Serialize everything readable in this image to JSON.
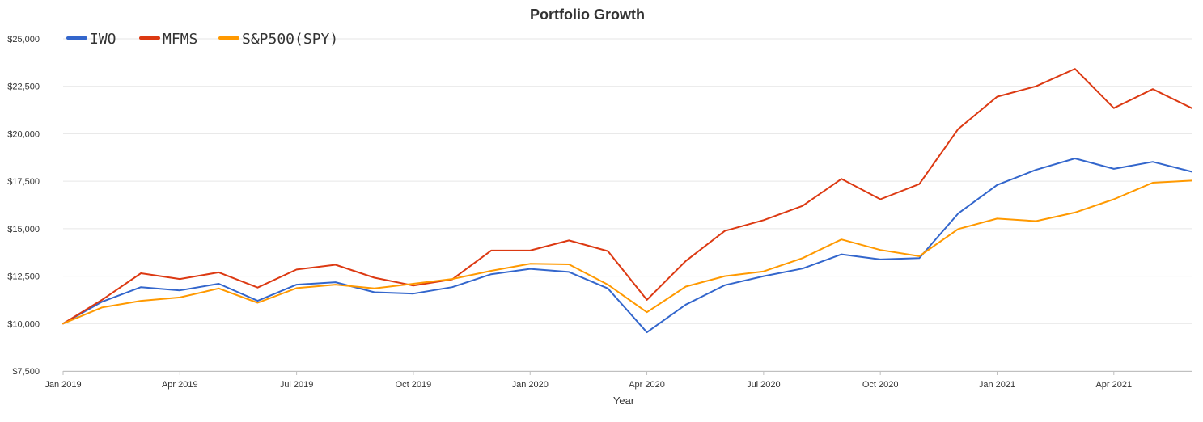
{
  "chart_data": {
    "type": "line",
    "title": "Portfolio Growth",
    "xlabel": "Year",
    "ylabel": "",
    "ylim": [
      7500,
      25000
    ],
    "y_ticks": [
      "$7,500",
      "$10,000",
      "$12,500",
      "$15,000",
      "$17,500",
      "$20,000",
      "$22,500",
      "$25,000"
    ],
    "y_tick_values": [
      7500,
      10000,
      12500,
      15000,
      17500,
      20000,
      22500,
      25000
    ],
    "x_ticks": [
      "Jan 2019",
      "Apr 2019",
      "Jul 2019",
      "Oct 2019",
      "Jan 2020",
      "Apr 2020",
      "Jul 2020",
      "Oct 2020",
      "Jan 2021",
      "Apr 2021"
    ],
    "x_tick_index": [
      0,
      3,
      6,
      9,
      12,
      15,
      18,
      21,
      24,
      27
    ],
    "grid": true,
    "legend": "top-left",
    "series": [
      {
        "name": "IWO",
        "color": "#3366cc",
        "values": [
          10000,
          11150,
          11920,
          11750,
          12100,
          11200,
          12050,
          12180,
          11650,
          11580,
          11920,
          12600,
          12880,
          12720,
          11850,
          9540,
          11000,
          12020,
          12500,
          12900,
          13650,
          13380,
          13450,
          15800,
          17300,
          18100,
          18700,
          18150,
          18520,
          18000
        ]
      },
      {
        "name": "MFMS",
        "color": "#dc3912",
        "values": [
          10000,
          11250,
          12650,
          12350,
          12700,
          11900,
          12850,
          13100,
          12420,
          12000,
          12330,
          13850,
          13850,
          14380,
          13820,
          11250,
          13300,
          14880,
          15450,
          16200,
          17620,
          16550,
          17350,
          20250,
          21950,
          22500,
          23420,
          21350,
          22350,
          21350
        ]
      },
      {
        "name": "S&P500(SPY)",
        "color": "#ff9900",
        "values": [
          10000,
          10850,
          11200,
          11380,
          11850,
          11100,
          11870,
          12050,
          11850,
          12100,
          12350,
          12780,
          13150,
          13120,
          12050,
          10600,
          11950,
          12500,
          12750,
          13450,
          14430,
          13880,
          13550,
          14980,
          15530,
          15400,
          15850,
          16550,
          17420,
          17530
        ]
      }
    ]
  }
}
